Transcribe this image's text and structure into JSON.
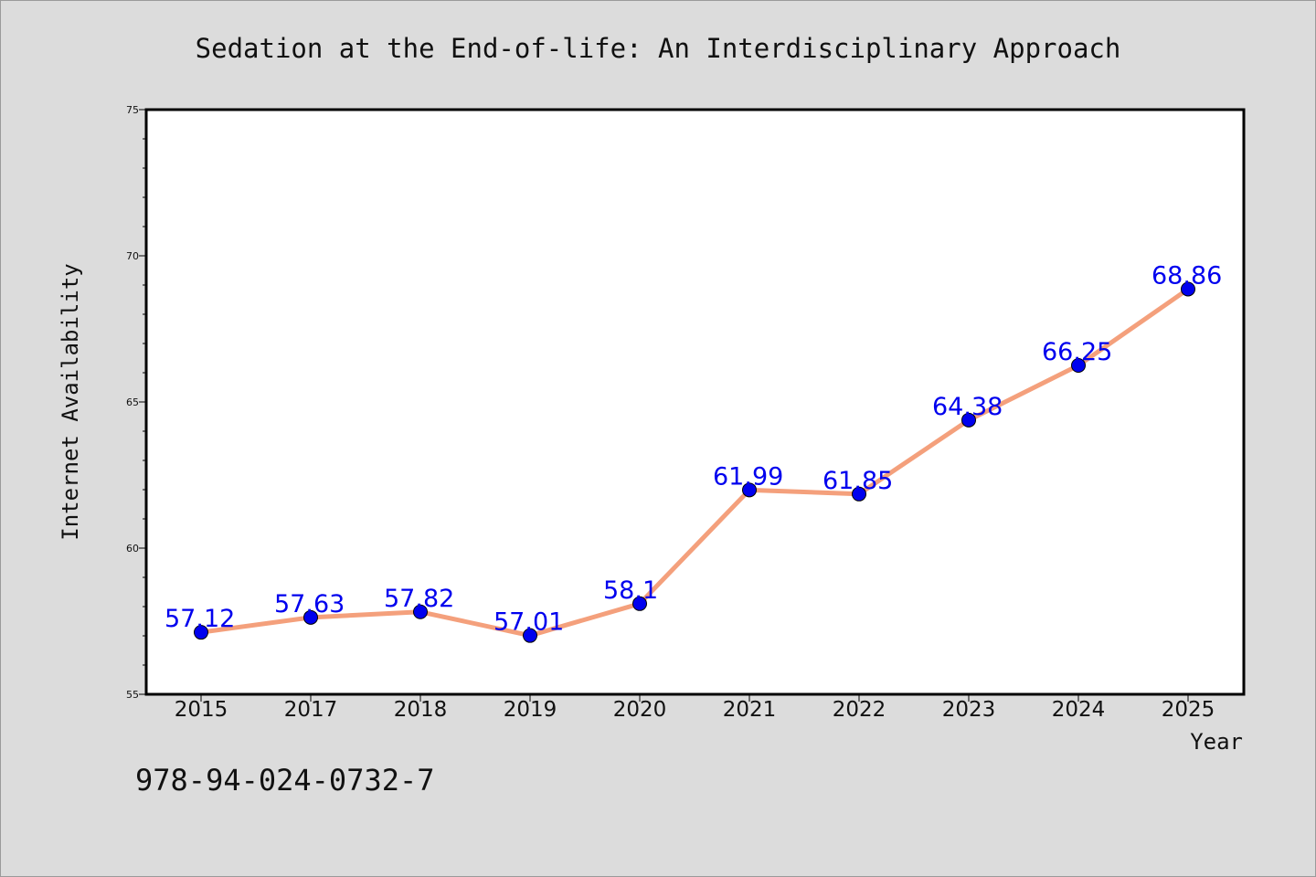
{
  "chart_data": {
    "type": "line",
    "title": "Sedation at the End-of-life: An Interdisciplinary Approach",
    "xlabel": "Year",
    "ylabel": "Internet Availability",
    "categories": [
      "2015",
      "2017",
      "2018",
      "2019",
      "2020",
      "2021",
      "2022",
      "2023",
      "2024",
      "2025"
    ],
    "values": [
      57.12,
      57.63,
      57.82,
      57.01,
      58.1,
      61.99,
      61.85,
      64.38,
      66.25,
      68.86
    ],
    "value_labels": [
      "57.12",
      "57.63",
      "57.82",
      "57.01",
      "58.1",
      "61.99",
      "61.85",
      "64.38",
      "66.25",
      "68.86"
    ],
    "ylim": [
      55,
      75
    ],
    "y_ticks": [
      "55",
      "60",
      "65",
      "70",
      "75"
    ],
    "grid": false,
    "line_color": "#f4a07c",
    "marker_color": "#0000ee",
    "label_color": "#0000ee"
  },
  "footer": {
    "isbn": "978-94-024-0732-7"
  }
}
